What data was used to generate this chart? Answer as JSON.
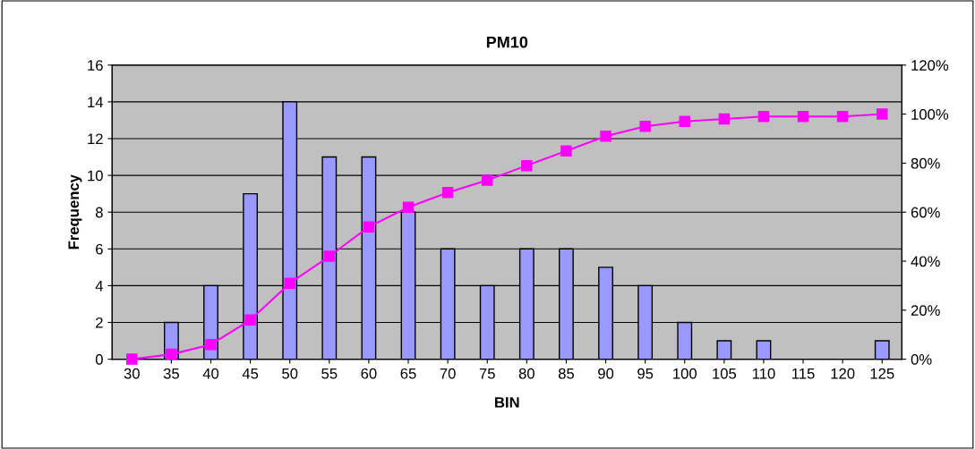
{
  "chart_data": {
    "type": "bar",
    "title": "PM10",
    "xlabel": "BIN",
    "ylabel": "Frequency",
    "categories": [
      "30",
      "35",
      "40",
      "45",
      "50",
      "55",
      "60",
      "65",
      "70",
      "75",
      "80",
      "85",
      "90",
      "95",
      "100",
      "105",
      "110",
      "115",
      "120",
      "125"
    ],
    "series": [
      {
        "type": "bar",
        "color": "#9999ff",
        "values": [
          0,
          2,
          4,
          9,
          14,
          11,
          11,
          8,
          6,
          4,
          6,
          6,
          5,
          4,
          2,
          1,
          1,
          0,
          0,
          1
        ]
      },
      {
        "type": "line",
        "axis": "y2",
        "color": "#ff00ff",
        "marker": "square",
        "values": [
          0,
          2,
          6,
          16,
          31,
          42,
          54,
          62,
          68,
          73,
          79,
          85,
          91,
          95,
          97,
          98,
          99,
          99,
          99,
          100
        ]
      }
    ],
    "ylim": [
      0,
      16
    ],
    "yticks": [
      0,
      2,
      4,
      6,
      8,
      10,
      12,
      14,
      16
    ],
    "y2lim": [
      0,
      120
    ],
    "y2ticks": [
      {
        "value": 0,
        "label": "0%"
      },
      {
        "value": 20,
        "label": "20%"
      },
      {
        "value": 40,
        "label": "40%"
      },
      {
        "value": 60,
        "label": "60%"
      },
      {
        "value": 80,
        "label": "80%"
      },
      {
        "value": 100,
        "label": "100%"
      },
      {
        "value": 120,
        "label": "120%"
      }
    ],
    "grid": "y",
    "legend": false
  }
}
